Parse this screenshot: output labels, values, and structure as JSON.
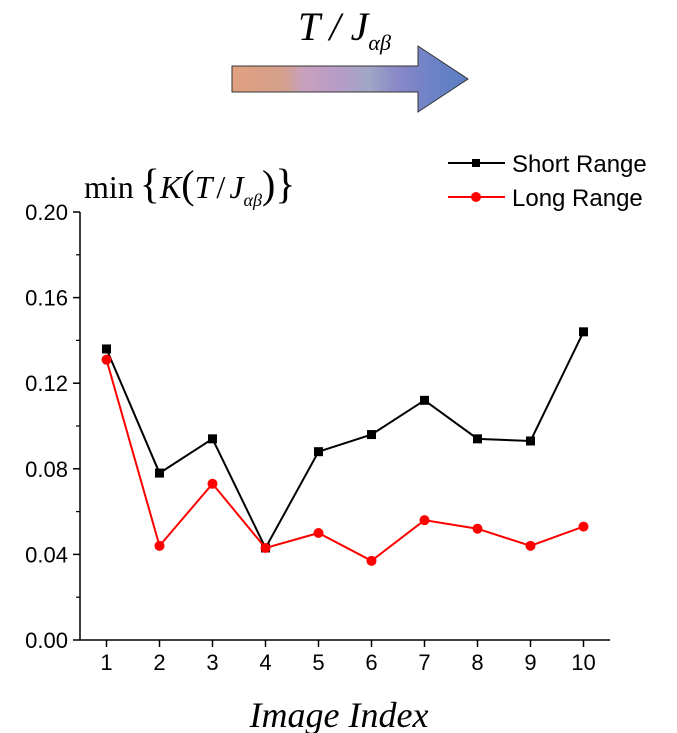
{
  "header": {
    "arrow_label_main": "T / J",
    "arrow_label_sub": "αβ",
    "arrow_gradient": [
      "#e0a07f",
      "#c8a0b8",
      "#b49ac4",
      "#a0a4c4",
      "#8a88c8",
      "#5b7ec4"
    ]
  },
  "chart_data": {
    "type": "line",
    "ylabel": "min{K(T/Jαβ)}",
    "ylabel_parts": {
      "prefix": "min",
      "k": "K",
      "t": "T",
      "slash": "/",
      "j": "J",
      "sub": "αβ"
    },
    "xlabel": "Image Index",
    "xlim": [
      0.5,
      10.5
    ],
    "ylim": [
      0,
      0.2
    ],
    "x_ticks": [
      1,
      2,
      3,
      4,
      5,
      6,
      7,
      8,
      9,
      10
    ],
    "y_ticks": [
      0,
      0.04,
      0.08,
      0.12,
      0.16,
      0.2
    ],
    "y_tick_labels": [
      "0.00",
      "0.04",
      "0.08",
      "0.12",
      "0.16",
      "0.20"
    ],
    "x_tick_labels": [
      "1",
      "2",
      "3",
      "4",
      "5",
      "6",
      "7",
      "8",
      "9",
      "10"
    ],
    "legend_position": "top-right",
    "series": [
      {
        "name": "Short Range",
        "color": "#000000",
        "marker": "square",
        "x": [
          1,
          2,
          3,
          4,
          5,
          6,
          7,
          8,
          9,
          10
        ],
        "y": [
          0.136,
          0.078,
          0.094,
          0.043,
          0.088,
          0.096,
          0.112,
          0.094,
          0.093,
          0.144
        ]
      },
      {
        "name": "Long Range",
        "color": "#ff0000",
        "marker": "circle",
        "x": [
          1,
          2,
          3,
          4,
          5,
          6,
          7,
          8,
          9,
          10
        ],
        "y": [
          0.131,
          0.044,
          0.073,
          0.043,
          0.05,
          0.037,
          0.056,
          0.052,
          0.044,
          0.053
        ]
      }
    ]
  }
}
